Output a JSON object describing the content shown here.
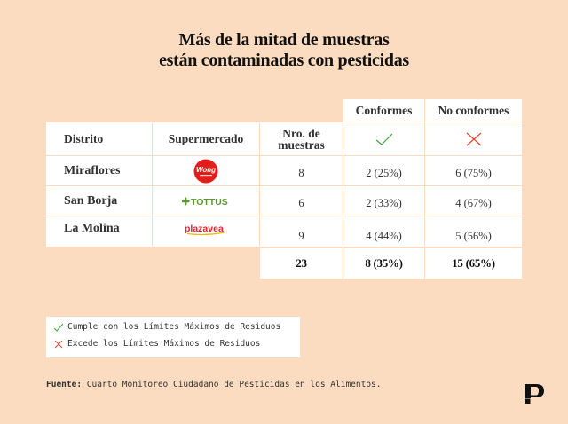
{
  "title_line1": "Más de la mitad de muestras",
  "title_line2": "están contaminadas con pesticidas",
  "table": {
    "group_headers": {
      "conformes": "Conformes",
      "no_conformes": "No conformes"
    },
    "headers": {
      "distrito": "Distrito",
      "supermercado": "Supermercado",
      "muestras": "Nro. de muestras"
    },
    "rows": [
      {
        "distrito": "Miraflores",
        "supermercado": "Wong",
        "muestras": "8",
        "conformes": "2 (25%)",
        "no_conformes": "6 (75%)"
      },
      {
        "distrito": "San Borja",
        "supermercado": "TOTTUS",
        "muestras": "6",
        "conformes": "2 (33%)",
        "no_conformes": "4 (67%)"
      },
      {
        "distrito": "La Molina",
        "supermercado": "plazavea",
        "muestras": "9",
        "conformes": "4 (44%)",
        "no_conformes": "5 (56%)"
      }
    ],
    "totals": {
      "muestras": "23",
      "conformes": "8 (35%)",
      "no_conformes": "15 (65%)"
    }
  },
  "legend": {
    "check": "Cumple con los Límites Máximos de Residuos",
    "cross": "Excede los Límites Máximos de Residuos"
  },
  "source": {
    "label": "Fuente:",
    "text": " Cuarto Monitoreo Ciudadano de Pesticidas en los Alimentos."
  },
  "colors": {
    "background": "#fcdcc0",
    "check": "#3aa33a",
    "cross": "#e0452c",
    "wong": "#e31d1a",
    "tottus": "#5a9a2a",
    "plazavea": "#e8232a"
  }
}
